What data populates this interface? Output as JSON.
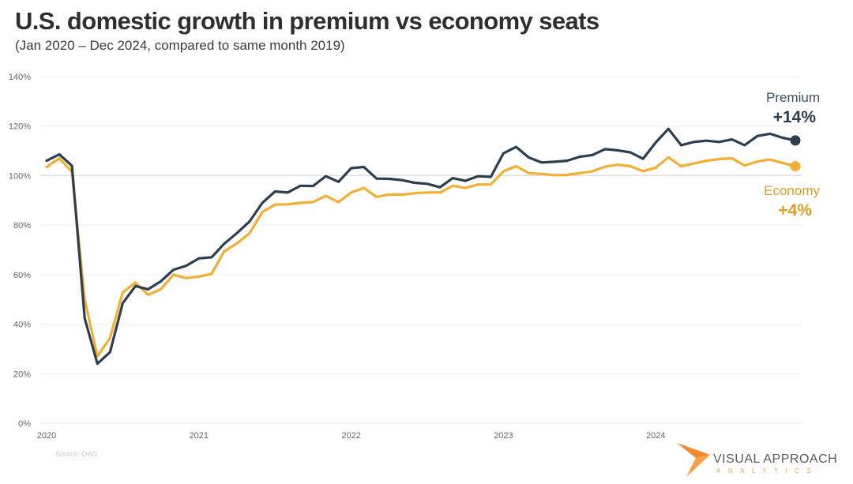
{
  "header": {
    "title": "U.S. domestic growth in premium vs economy seats",
    "subtitle": "(Jan 2020 – Dec 2024, compared to same month 2019)"
  },
  "footer": {
    "source": "Source: OAG",
    "logo_main": "VISUAL APPROACH",
    "logo_sub": "ANALYTICS"
  },
  "colors": {
    "premium": "#2d3e4e",
    "economy": "#f2ae35",
    "economy_label": "#e59b22",
    "logo_orange": "#f08a2c"
  },
  "chart_data": {
    "type": "line",
    "title": "U.S. domestic growth in premium vs economy seats",
    "subtitle": "(Jan 2020 – Dec 2024, compared to same month 2019)",
    "xlabel": "",
    "ylabel": "",
    "ylim": [
      0,
      140
    ],
    "yticks": [
      0,
      20,
      40,
      60,
      80,
      100,
      120,
      140
    ],
    "ytick_labels": [
      "0%",
      "20%",
      "40%",
      "60%",
      "80%",
      "100%",
      "120%",
      "140%"
    ],
    "xtick_labels": [
      "2020",
      "2021",
      "2022",
      "2023",
      "2024"
    ],
    "xtick_month_index": [
      0,
      12,
      24,
      36,
      48
    ],
    "grid": true,
    "months": 60,
    "x_start": "Jan 2020",
    "x_end": "Dec 2024",
    "series": [
      {
        "name": "Premium",
        "end_label": "+14%",
        "values": [
          106,
          108.6,
          104,
          42.4,
          24,
          28.7,
          48.5,
          55.4,
          54.1,
          57.3,
          62,
          63.6,
          66.6,
          67,
          72.5,
          76.8,
          81.5,
          89,
          93.6,
          93.2,
          95.9,
          95.8,
          99.8,
          97.5,
          103,
          103.5,
          98.8,
          98.7,
          98.2,
          97.1,
          96.7,
          95.3,
          99,
          97.9,
          99.8,
          99.5,
          109,
          111.6,
          107.3,
          105.3,
          105.6,
          106,
          107.6,
          108.3,
          110.7,
          110.2,
          109.4,
          106.8,
          113.4,
          118.9,
          112.3,
          113.6,
          114.1,
          113.6,
          114.6,
          112.3,
          116,
          116.9,
          115.3,
          114.2
        ]
      },
      {
        "name": "Economy",
        "end_label": "+4%",
        "values": [
          103.5,
          107,
          101.6,
          50,
          27,
          34.4,
          52.8,
          56.8,
          51.9,
          54.1,
          60,
          58.6,
          59.2,
          60.3,
          69.4,
          72.6,
          76.8,
          85.3,
          88.3,
          88.4,
          89,
          89.3,
          91.8,
          89.3,
          93.2,
          95,
          91.4,
          92.4,
          92.3,
          92.9,
          93.2,
          93.2,
          95.9,
          95,
          96.4,
          96.4,
          101.7,
          103.8,
          101,
          100.7,
          100.2,
          100.3,
          101,
          101.7,
          103.6,
          104.4,
          103.8,
          101.8,
          103.2,
          107.4,
          103.8,
          104.9,
          106,
          106.7,
          107,
          104.1,
          105.7,
          106.5,
          105.1,
          103.8
        ]
      }
    ],
    "legend": "direct labels at right end of lines"
  }
}
